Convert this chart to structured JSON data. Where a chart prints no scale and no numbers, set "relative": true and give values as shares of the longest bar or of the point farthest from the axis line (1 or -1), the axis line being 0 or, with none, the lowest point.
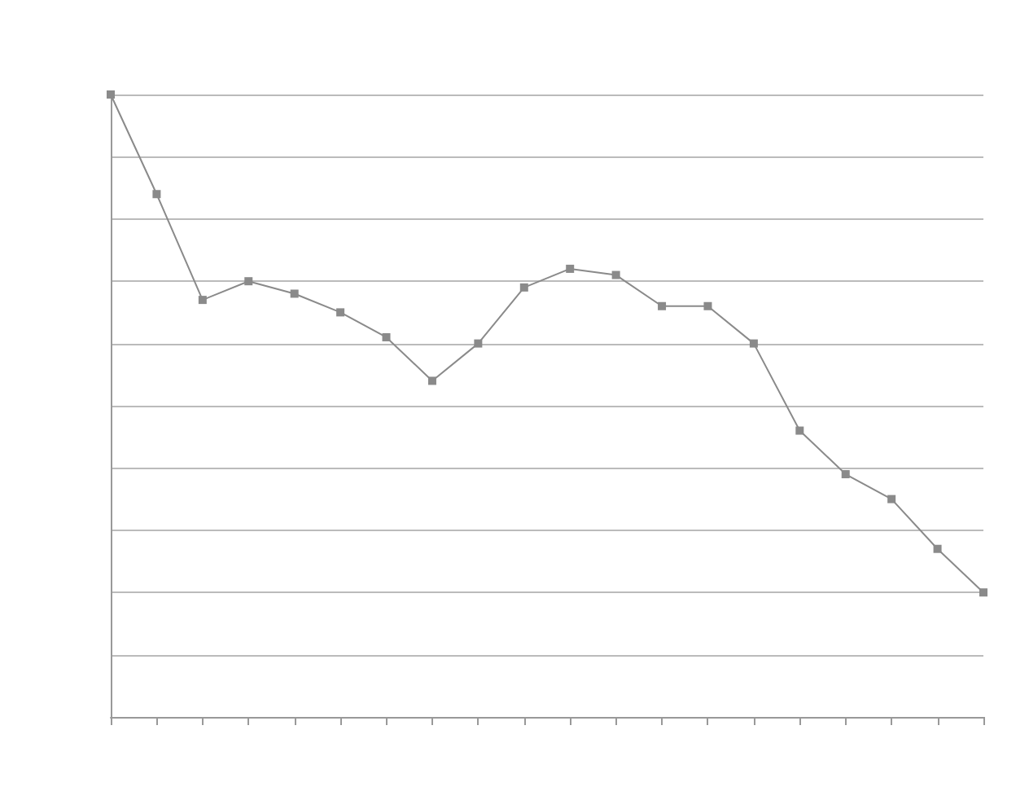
{
  "chart_data": {
    "type": "line",
    "relative": true,
    "categories": [
      null,
      null,
      null,
      null,
      null,
      null,
      null,
      null,
      null,
      null,
      null,
      null,
      null,
      null,
      null,
      null,
      null,
      null,
      null,
      null
    ],
    "series": [
      {
        "color": "#8a8a8a",
        "values": [
          1,
          0.84,
          0.67,
          0.7,
          0.68,
          0.65,
          0.61,
          0.54,
          0.6,
          0.69,
          0.72,
          0.71,
          0.66,
          0.66,
          0.6,
          0.46,
          0.39,
          0.35,
          0.27,
          0.2
        ]
      }
    ],
    "grid": "y",
    "marker": "square",
    "line_style": "solid"
  }
}
